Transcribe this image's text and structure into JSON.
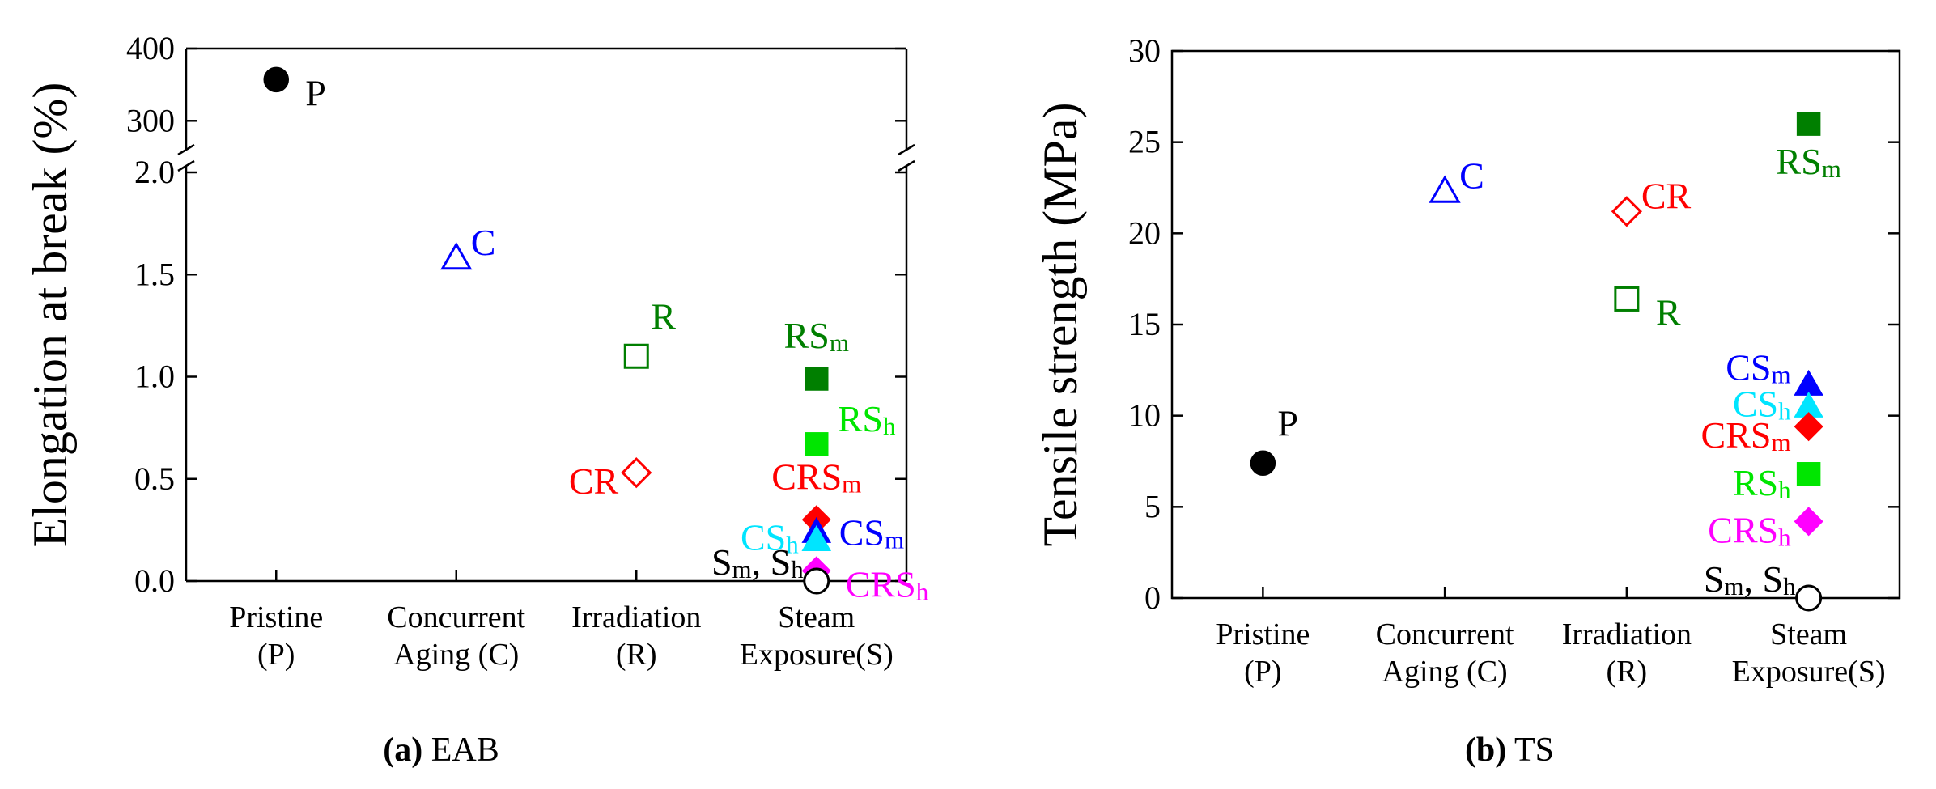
{
  "chart_data": [
    {
      "id": "a",
      "type": "scatter",
      "caption_letter": "(a)",
      "caption_text": "EAB",
      "ylabel": "Elongation at break (%)",
      "categories": [
        "Pristine|(P)",
        "Concurrent|Aging (C)",
        "Irradiation|(R)",
        "Steam|Exposure(S)"
      ],
      "broken_axis": {
        "lower": {
          "ylim": [
            0,
            2.0
          ],
          "ticks": [
            0.0,
            0.5,
            1.0,
            1.5,
            2.0
          ],
          "tick_labels": [
            "0.0",
            "0.5",
            "1.0",
            "1.5",
            "2.0"
          ]
        },
        "upper": {
          "ylim": [
            260,
            400
          ],
          "ticks": [
            300,
            400
          ],
          "tick_labels": [
            "300",
            "400"
          ]
        }
      },
      "points": [
        {
          "label": "P",
          "sub": "",
          "x": 0,
          "y": 357,
          "segment": "upper",
          "marker": "circle",
          "filled": true,
          "color": "#000000",
          "label_color": "#000000",
          "label_pos": "right-low"
        },
        {
          "label": "C",
          "sub": "",
          "x": 1,
          "y": 1.58,
          "segment": "lower",
          "marker": "triangle",
          "filled": false,
          "color": "#0000ff",
          "label_color": "#0000ff",
          "label_pos": "right-high"
        },
        {
          "label": "R",
          "sub": "",
          "x": 2,
          "y": 1.1,
          "segment": "lower",
          "marker": "square",
          "filled": false,
          "color": "#007f00",
          "label_color": "#007f00",
          "label_pos": "above-right"
        },
        {
          "label": "CR",
          "sub": "",
          "x": 2,
          "y": 0.53,
          "segment": "lower",
          "marker": "diamond",
          "filled": false,
          "color": "#ff0000",
          "label_color": "#ff0000",
          "label_pos": "left-low"
        },
        {
          "label": "RS",
          "sub": "m",
          "x": 3,
          "y": 0.99,
          "segment": "lower",
          "marker": "square",
          "filled": true,
          "color": "#007f00",
          "label_color": "#007f00",
          "label_pos": "above"
        },
        {
          "label": "RS",
          "sub": "h",
          "x": 3,
          "y": 0.67,
          "segment": "lower",
          "marker": "square",
          "filled": true,
          "color": "#00e600",
          "label_color": "#00e600",
          "label_pos": "upper-right"
        },
        {
          "label": "CRS",
          "sub": "m",
          "x": 3,
          "y": 0.3,
          "segment": "lower",
          "marker": "diamond",
          "filled": true,
          "color": "#ff0000",
          "label_color": "#ff0000",
          "label_pos": "above"
        },
        {
          "label": "CS",
          "sub": "m",
          "x": 3,
          "y": 0.24,
          "segment": "lower",
          "marker": "triangle",
          "filled": true,
          "color": "#0000ff",
          "label_color": "#0000ff",
          "label_pos": "right"
        },
        {
          "label": "CS",
          "sub": "h",
          "x": 3,
          "y": 0.2,
          "segment": "lower",
          "marker": "triangle",
          "filled": true,
          "color": "#00e5ff",
          "label_color": "#00e5ff",
          "label_pos": "left"
        },
        {
          "label": "CRS",
          "sub": "h",
          "x": 3,
          "y": 0.05,
          "segment": "lower",
          "marker": "diamond",
          "filled": true,
          "color": "#ff00ff",
          "label_color": "#ff00ff",
          "label_pos": "right-low"
        },
        {
          "label": "S",
          "sub": "m",
          "label2": "S",
          "sub2": "h",
          "x": 3,
          "y": 0.0,
          "segment": "lower",
          "marker": "circle",
          "filled": false,
          "color": "#000000",
          "label_color": "#000000",
          "label_pos": "left-up"
        }
      ]
    },
    {
      "id": "b",
      "type": "scatter",
      "caption_letter": "(b)",
      "caption_text": "TS",
      "ylabel": "Tensile strength (MPa)",
      "categories": [
        "Pristine|(P)",
        "Concurrent|Aging (C)",
        "Irradiation|(R)",
        "Steam|Exposure(S)"
      ],
      "ylim": [
        0,
        30
      ],
      "ticks": [
        0,
        5,
        10,
        15,
        20,
        25,
        30
      ],
      "tick_labels": [
        "0",
        "5",
        "10",
        "15",
        "20",
        "25",
        "30"
      ],
      "points": [
        {
          "label": "P",
          "sub": "",
          "x": 0,
          "y": 7.4,
          "marker": "circle",
          "filled": true,
          "color": "#000000",
          "label_color": "#000000",
          "label_pos": "above-right"
        },
        {
          "label": "C",
          "sub": "",
          "x": 1,
          "y": 22.3,
          "marker": "triangle",
          "filled": false,
          "color": "#0000ff",
          "label_color": "#0000ff",
          "label_pos": "right-high"
        },
        {
          "label": "CR",
          "sub": "",
          "x": 2,
          "y": 21.2,
          "marker": "diamond",
          "filled": false,
          "color": "#ff0000",
          "label_color": "#ff0000",
          "label_pos": "right-high"
        },
        {
          "label": "R",
          "sub": "",
          "x": 2,
          "y": 16.4,
          "marker": "square",
          "filled": false,
          "color": "#007f00",
          "label_color": "#007f00",
          "label_pos": "right-low"
        },
        {
          "label": "RS",
          "sub": "m",
          "x": 3,
          "y": 26.0,
          "marker": "square",
          "filled": true,
          "color": "#007f00",
          "label_color": "#007f00",
          "label_pos": "below"
        },
        {
          "label": "CS",
          "sub": "m",
          "x": 3,
          "y": 11.7,
          "marker": "triangle",
          "filled": true,
          "color": "#0000ff",
          "label_color": "#0000ff",
          "label_pos": "left-high"
        },
        {
          "label": "CS",
          "sub": "h",
          "x": 3,
          "y": 10.5,
          "marker": "triangle",
          "filled": true,
          "color": "#00e5ff",
          "label_color": "#00e5ff",
          "label_pos": "left"
        },
        {
          "label": "CRS",
          "sub": "m",
          "x": 3,
          "y": 9.4,
          "marker": "diamond",
          "filled": true,
          "color": "#ff0000",
          "label_color": "#ff0000",
          "label_pos": "left-low"
        },
        {
          "label": "RS",
          "sub": "h",
          "x": 3,
          "y": 6.8,
          "marker": "square",
          "filled": true,
          "color": "#00e600",
          "label_color": "#00e600",
          "label_pos": "left-low"
        },
        {
          "label": "CRS",
          "sub": "h",
          "x": 3,
          "y": 4.2,
          "marker": "diamond",
          "filled": true,
          "color": "#ff00ff",
          "label_color": "#ff00ff",
          "label_pos": "left-low"
        },
        {
          "label": "S",
          "sub": "m",
          "label2": "S",
          "sub2": "h",
          "x": 3,
          "y": 0.0,
          "marker": "circle",
          "filled": false,
          "color": "#000000",
          "label_color": "#000000",
          "label_pos": "left-up"
        }
      ]
    }
  ]
}
